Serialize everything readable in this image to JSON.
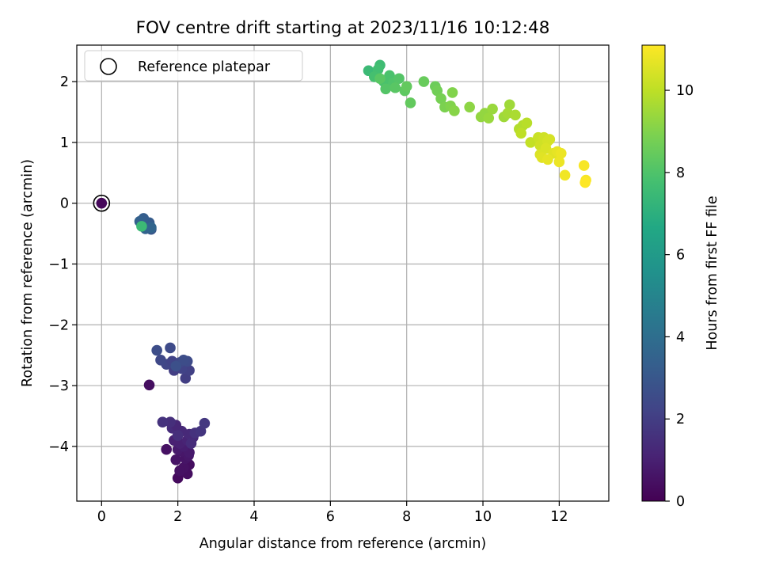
{
  "chart_data": {
    "type": "scatter",
    "title": "FOV centre drift starting at 2023/11/16 10:12:48",
    "xlabel": "Angular distance from reference (arcmin)",
    "ylabel": "Rotation from reference (arcmin)",
    "xlim": [
      -0.65,
      13.3
    ],
    "ylim": [
      -4.9,
      2.6
    ],
    "x_ticks": [
      0,
      2,
      4,
      6,
      8,
      10,
      12
    ],
    "y_ticks": [
      -4,
      -3,
      -2,
      -1,
      0,
      1,
      2
    ],
    "grid": true,
    "legend": {
      "position": "top-left",
      "entries": [
        "Reference platepar"
      ]
    },
    "colorbar": {
      "label": "Hours from first FF file",
      "colormap": "viridis",
      "range": [
        0,
        11.1
      ],
      "ticks": [
        0,
        2,
        4,
        6,
        8,
        10
      ]
    },
    "reference_point": {
      "x": 0,
      "y": 0
    },
    "points": [
      [
        0,
        0,
        0.2
      ],
      [
        2.0,
        -4.52,
        0.3
      ],
      [
        2.25,
        -4.45,
        0.4
      ],
      [
        2.3,
        -4.3,
        0.4
      ],
      [
        2.15,
        -4.35,
        0.5
      ],
      [
        2.05,
        -4.4,
        0.5
      ],
      [
        1.95,
        -4.22,
        0.6
      ],
      [
        2.2,
        -4.2,
        0.6
      ],
      [
        2.28,
        -4.15,
        0.7
      ],
      [
        2.1,
        -4.08,
        0.7
      ],
      [
        2.0,
        -4.05,
        0.8
      ],
      [
        1.7,
        -4.05,
        0.5
      ],
      [
        2.3,
        -4.1,
        0.8
      ],
      [
        2.15,
        -4.0,
        0.9
      ],
      [
        2.05,
        -3.95,
        1.0
      ],
      [
        1.9,
        -3.9,
        1.0
      ],
      [
        2.25,
        -3.9,
        1.1
      ],
      [
        2.4,
        -3.85,
        1.2
      ],
      [
        2.3,
        -3.8,
        1.3
      ],
      [
        2.1,
        -3.75,
        1.3
      ],
      [
        1.85,
        -3.7,
        1.4
      ],
      [
        1.95,
        -3.65,
        1.2
      ],
      [
        1.8,
        -3.6,
        1.5
      ],
      [
        1.6,
        -3.6,
        1.6
      ],
      [
        2.45,
        -3.78,
        1.6
      ],
      [
        2.6,
        -3.75,
        1.7
      ],
      [
        2.7,
        -3.62,
        1.8
      ],
      [
        2.0,
        -3.82,
        1.5
      ],
      [
        2.35,
        -3.95,
        1.4
      ],
      [
        1.25,
        -2.99,
        0.4
      ],
      [
        2.2,
        -2.88,
        2.0
      ],
      [
        2.3,
        -2.75,
        2.1
      ],
      [
        2.1,
        -2.72,
        2.2
      ],
      [
        1.9,
        -2.75,
        2.0
      ],
      [
        1.7,
        -2.65,
        2.3
      ],
      [
        1.55,
        -2.58,
        2.4
      ],
      [
        1.85,
        -2.6,
        2.2
      ],
      [
        2.05,
        -2.62,
        2.4
      ],
      [
        2.25,
        -2.6,
        2.5
      ],
      [
        2.15,
        -2.58,
        2.6
      ],
      [
        1.8,
        -2.38,
        2.5
      ],
      [
        1.45,
        -2.42,
        2.6
      ],
      [
        1.95,
        -2.68,
        2.7
      ],
      [
        1.3,
        -0.43,
        3.0
      ],
      [
        1.2,
        -0.38,
        3.1
      ],
      [
        1.25,
        -0.32,
        3.2
      ],
      [
        1.1,
        -0.25,
        3.3
      ],
      [
        1.0,
        -0.3,
        3.4
      ],
      [
        1.15,
        -0.42,
        3.5
      ],
      [
        1.3,
        -0.4,
        3.6
      ],
      [
        1.05,
        -0.38,
        7.5
      ],
      [
        7.0,
        2.18,
        7.5
      ],
      [
        7.3,
        2.27,
        7.6
      ],
      [
        7.25,
        2.2,
        7.7
      ],
      [
        7.15,
        2.08,
        7.8
      ],
      [
        7.4,
        2.0,
        7.9
      ],
      [
        7.55,
        2.1,
        7.9
      ],
      [
        7.65,
        1.98,
        8.0
      ],
      [
        7.8,
        2.05,
        8.1
      ],
      [
        7.45,
        1.88,
        8.1
      ],
      [
        7.7,
        1.9,
        8.2
      ],
      [
        7.3,
        2.05,
        8.2
      ],
      [
        7.95,
        1.85,
        8.3
      ],
      [
        8.0,
        1.92,
        8.4
      ],
      [
        8.1,
        1.65,
        8.4
      ],
      [
        8.45,
        2.0,
        8.5
      ],
      [
        8.75,
        1.92,
        8.6
      ],
      [
        8.8,
        1.85,
        8.7
      ],
      [
        8.9,
        1.72,
        8.8
      ],
      [
        9.0,
        1.58,
        8.9
      ],
      [
        9.15,
        1.6,
        9.0
      ],
      [
        9.2,
        1.82,
        9.0
      ],
      [
        9.25,
        1.52,
        9.1
      ],
      [
        9.65,
        1.58,
        9.2
      ],
      [
        9.95,
        1.42,
        9.3
      ],
      [
        10.05,
        1.48,
        9.3
      ],
      [
        10.15,
        1.4,
        9.4
      ],
      [
        10.25,
        1.55,
        9.4
      ],
      [
        10.55,
        1.42,
        9.5
      ],
      [
        10.7,
        1.62,
        9.5
      ],
      [
        10.65,
        1.48,
        9.6
      ],
      [
        10.85,
        1.45,
        9.7
      ],
      [
        10.95,
        1.22,
        9.8
      ],
      [
        11.05,
        1.28,
        9.8
      ],
      [
        11.15,
        1.32,
        9.9
      ],
      [
        11.0,
        1.15,
        10.0
      ],
      [
        11.25,
        1.0,
        10.1
      ],
      [
        11.45,
        1.08,
        10.2
      ],
      [
        11.6,
        1.08,
        10.3
      ],
      [
        11.5,
        0.95,
        10.3
      ],
      [
        11.7,
        1.02,
        10.4
      ],
      [
        11.75,
        1.05,
        10.4
      ],
      [
        11.65,
        0.9,
        10.5
      ],
      [
        11.5,
        0.8,
        10.5
      ],
      [
        11.85,
        0.82,
        10.6
      ],
      [
        11.55,
        0.75,
        10.6
      ],
      [
        11.95,
        0.85,
        10.7
      ],
      [
        11.7,
        0.72,
        10.7
      ],
      [
        12.0,
        0.68,
        10.8
      ],
      [
        12.05,
        0.82,
        10.8
      ],
      [
        12.15,
        0.46,
        10.9
      ],
      [
        12.65,
        0.62,
        11.0
      ],
      [
        12.7,
        0.38,
        11.0
      ],
      [
        12.68,
        0.34,
        11.1
      ]
    ]
  }
}
